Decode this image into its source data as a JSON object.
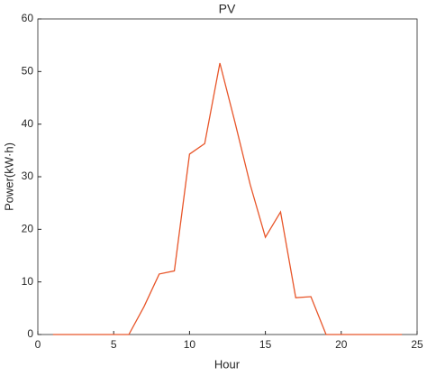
{
  "chart_data": {
    "type": "line",
    "title": "PV",
    "x_label": "Hour",
    "y_label": "Power(kW·h)",
    "x": [
      1,
      2,
      3,
      4,
      5,
      6,
      7,
      8,
      9,
      10,
      11,
      12,
      13,
      14,
      15,
      16,
      17,
      18,
      19,
      20,
      21,
      22,
      23,
      24
    ],
    "series": [
      {
        "name": "PV",
        "color": "#e8562a",
        "values": [
          0,
          0,
          0,
          0,
          0,
          0,
          5.3,
          11.5,
          12.1,
          34.3,
          36.3,
          51.6,
          40.3,
          28.5,
          18.5,
          23.3,
          7,
          7.2,
          0,
          0,
          0,
          0,
          0,
          0
        ]
      }
    ],
    "xlim": [
      0,
      25
    ],
    "xticks": [
      0,
      5,
      10,
      15,
      20,
      25
    ],
    "ylim": [
      0,
      60
    ],
    "yticks": [
      0,
      10,
      20,
      30,
      40,
      50,
      60
    ],
    "grid": false
  }
}
